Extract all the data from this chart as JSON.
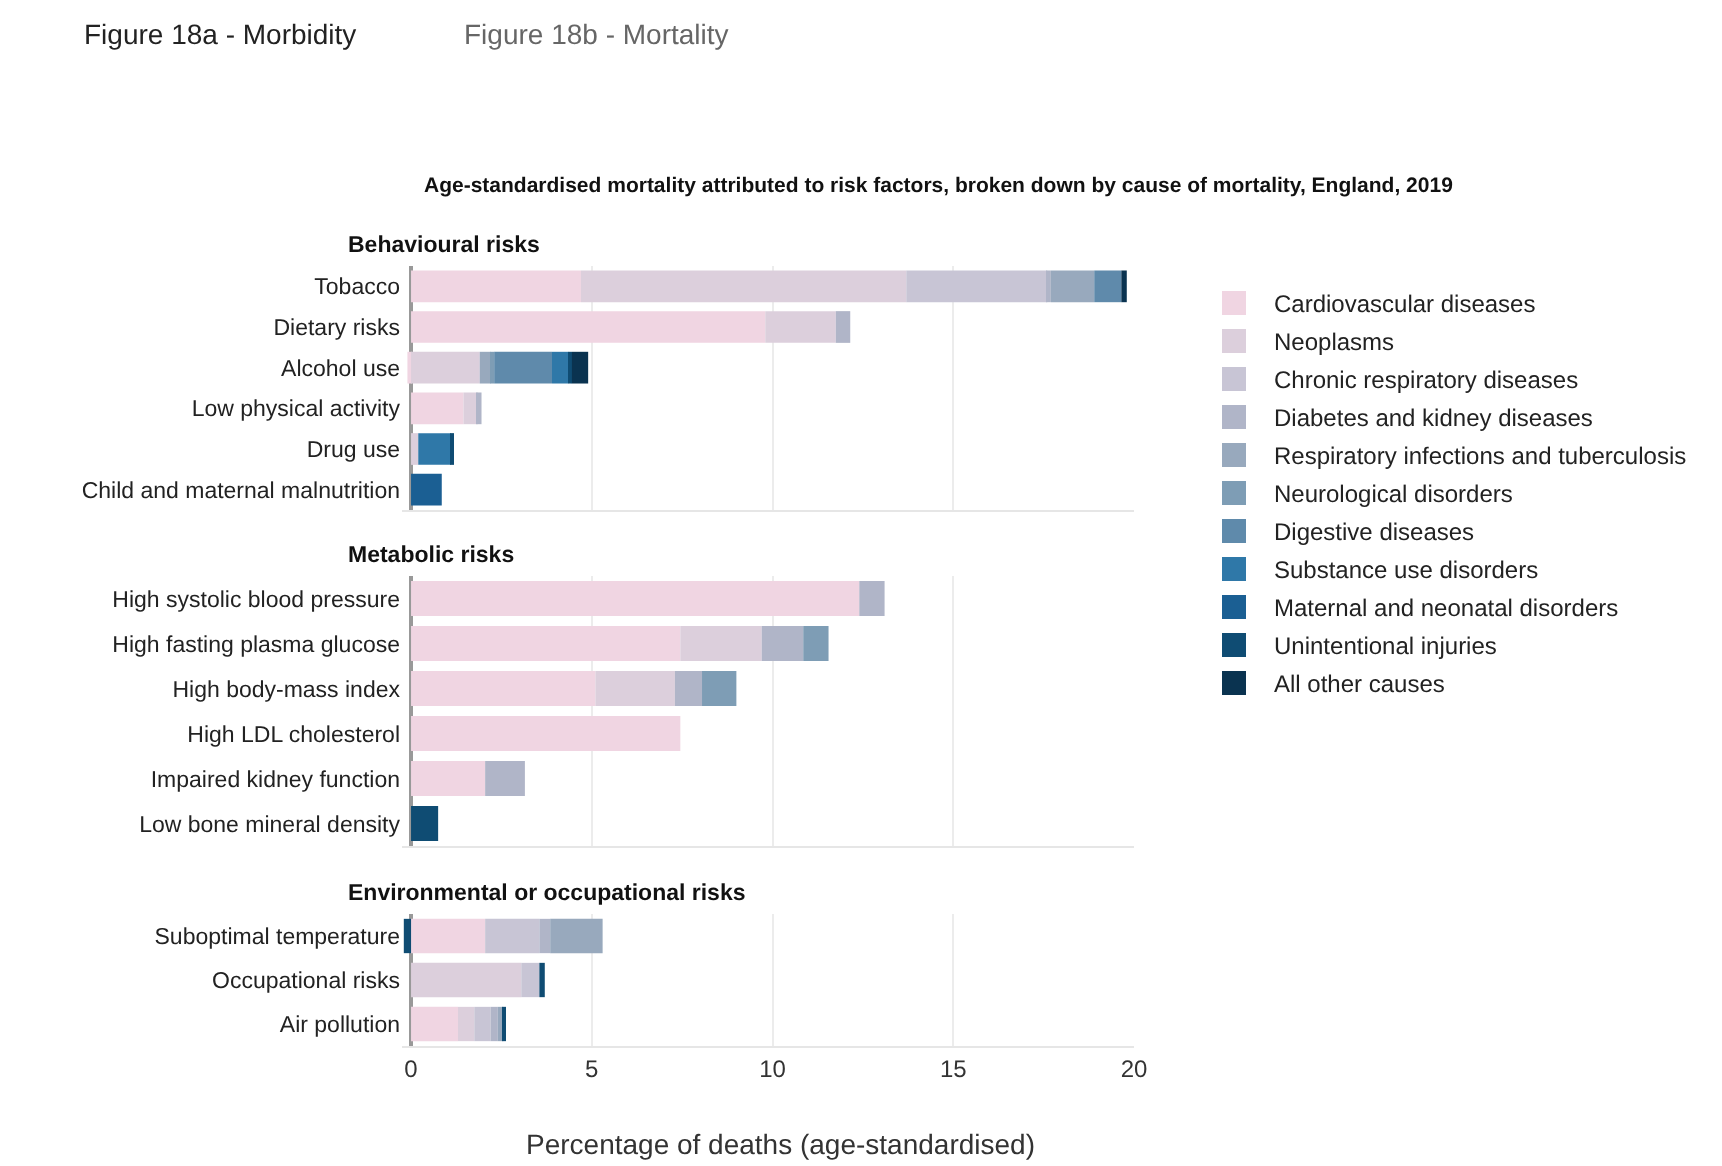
{
  "chart_data": [
    {
      "type": "bar",
      "orientation": "horizontal",
      "stacked": true,
      "title": "Age-standardised mortality attributed to risk factors, broken down by cause of mortality, England, 2019",
      "subtitle": "Behavioural risks",
      "annotations": [
        "Figure 18a - Morbidity",
        "Figure 18b - Mortality"
      ],
      "categories": [
        "Tobacco",
        "Dietary risks",
        "Alcohol use",
        "Low physical activity",
        "Drug use",
        "Child and maternal malnutrition"
      ],
      "series": [
        {
          "name": "Cardiovascular diseases",
          "color": "#f0d5e2",
          "values": [
            4.7,
            9.8,
            -0.1,
            1.45,
            null,
            null
          ]
        },
        {
          "name": "Neoplasms",
          "color": "#dccfdc",
          "values": [
            9.0,
            1.95,
            1.9,
            0.4,
            0.2,
            null
          ]
        },
        {
          "name": "Chronic respiratory diseases",
          "color": "#c8c5d5",
          "values": [
            3.9,
            null,
            null,
            null,
            null,
            null
          ]
        },
        {
          "name": "Diabetes and kidney diseases",
          "color": "#b0b5c8",
          "values": [
            0.1,
            0.4,
            null,
            0.1,
            null,
            null
          ]
        },
        {
          "name": "Respiratory infections and tuberculosis",
          "color": "#98a9bd",
          "values": [
            1.2,
            null,
            0.3,
            null,
            null,
            null
          ]
        },
        {
          "name": "Neurological disorders",
          "color": "#7e9db5",
          "values": [
            null,
            null,
            0.1,
            null,
            null,
            null
          ]
        },
        {
          "name": "Digestive diseases",
          "color": "#5f8aab",
          "values": [
            0.75,
            null,
            1.6,
            null,
            null,
            null
          ]
        },
        {
          "name": "Substance use disorders",
          "color": "#2f78a8",
          "values": [
            null,
            null,
            0.45,
            null,
            0.9,
            null
          ]
        },
        {
          "name": "Maternal and neonatal disorders",
          "color": "#1b5f93",
          "values": [
            null,
            null,
            null,
            null,
            null,
            0.85
          ]
        },
        {
          "name": "Unintentional injuries",
          "color": "#0f4c73",
          "values": [
            null,
            null,
            0.1,
            null,
            0.05,
            null
          ]
        },
        {
          "name": "All other causes",
          "color": "#0a3350",
          "values": [
            0.15,
            null,
            0.45,
            null,
            null,
            null
          ]
        }
      ],
      "xlim": [
        -0.25,
        20
      ],
      "xticks": [
        0,
        5,
        10,
        15,
        20
      ],
      "grid": "x",
      "legend": "right",
      "tick_labels": "y"
    },
    {
      "type": "bar",
      "orientation": "horizontal",
      "stacked": true,
      "title": "Metabolic risks",
      "categories": [
        "High systolic blood pressure",
        "High fasting plasma glucose",
        "High body-mass index",
        "High LDL cholesterol",
        "Impaired kidney function",
        "Low bone mineral density"
      ],
      "series": [
        {
          "color": "#f0d5e2",
          "values": [
            12.4,
            7.45,
            5.1,
            7.45,
            2.05,
            null
          ]
        },
        {
          "color": "#dccfdc",
          "values": [
            null,
            2.25,
            2.2,
            null,
            null,
            null
          ]
        },
        {
          "color": "#b0b5c8",
          "values": [
            0.7,
            1.15,
            0.75,
            null,
            1.1,
            null
          ]
        },
        {
          "color": "#7e9db5",
          "values": [
            null,
            0.7,
            0.95,
            null,
            null,
            null
          ]
        },
        {
          "color": "#0f4c73",
          "values": [
            null,
            null,
            null,
            null,
            null,
            0.75
          ]
        }
      ],
      "xlim": [
        -0.25,
        20
      ],
      "xticks": [
        0,
        5,
        10,
        15,
        20
      ],
      "grid": "x",
      "tick_labels": "y"
    },
    {
      "type": "bar",
      "orientation": "horizontal",
      "stacked": true,
      "title": "Environmental or occupational risks",
      "xlabel": "Percentage of deaths (age-standardised)",
      "categories": [
        "Suboptimal temperature",
        "Occupational risks",
        "Air pollution"
      ],
      "series": [
        {
          "color": "#f0d5e2",
          "values": [
            2.05,
            null,
            1.3
          ]
        },
        {
          "color": "#dccfdc",
          "values": [
            null,
            3.05,
            0.45
          ]
        },
        {
          "color": "#c8c5d5",
          "values": [
            1.5,
            0.5,
            0.45
          ]
        },
        {
          "color": "#b0b5c8",
          "values": [
            0.3,
            null,
            0.2
          ]
        },
        {
          "color": "#98a9bd",
          "values": [
            1.45,
            null,
            0.15
          ]
        },
        {
          "color": "#0f4c73",
          "values": [
            -0.2,
            0.15,
            0.05
          ]
        }
      ],
      "xlim": [
        -0.25,
        20
      ],
      "xticks": [
        0,
        5,
        10,
        15,
        20
      ],
      "grid": "x"
    }
  ]
}
